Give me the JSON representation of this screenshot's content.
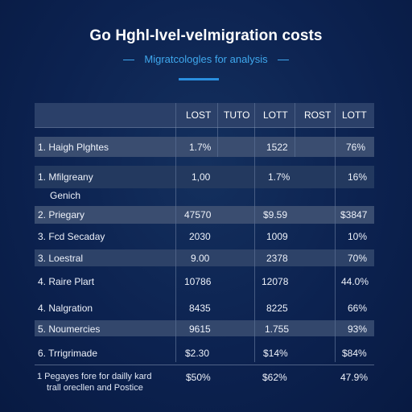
{
  "title": "Go Hghl-lvel-velmigration costs",
  "subtitle": "Migratcologles for analysis",
  "table": {
    "headers": [
      "LOST",
      "TUTO",
      "LOTT",
      "ROST",
      "LOTT"
    ],
    "rows": [
      {
        "label": "1. Haigh Plghtes",
        "sub": "",
        "values": [
          "1.7%",
          "",
          "1522",
          "",
          "76%"
        ]
      },
      {
        "label": "1. Mfilgreany",
        "sub": "Genich",
        "values": [
          "1,00",
          "",
          "1.7%",
          "",
          "16%"
        ]
      },
      {
        "label": "2. Priegary",
        "sub": "",
        "values": [
          "47570",
          "",
          "$9.59",
          "",
          "$3847"
        ]
      },
      {
        "label": "3. Fcd Secaday",
        "sub": "",
        "values": [
          "2030",
          "",
          "1009",
          "",
          "10%"
        ]
      },
      {
        "label": "3. Loestral",
        "sub": "",
        "values": [
          "9.00",
          "",
          "2378",
          "",
          "70%"
        ]
      },
      {
        "label": "4. Raire Plart",
        "sub": "",
        "values": [
          "10786",
          "",
          "12078",
          "",
          "44.0%"
        ]
      },
      {
        "label": "4. Nalgration",
        "sub": "",
        "values": [
          "8435",
          "",
          "8225",
          "",
          "66%"
        ]
      },
      {
        "label": "5. Noumercies",
        "sub": "",
        "values": [
          "9615",
          "",
          "1.755",
          "",
          "93%"
        ]
      },
      {
        "label": "6. Trrigrimade",
        "sub": "",
        "values": [
          "$2.30",
          "",
          "$14%",
          "",
          "$84%"
        ]
      }
    ]
  },
  "footnote": {
    "line1": "1 Pegayes fore for dailly kard",
    "line2": "trall orecllen and Postice",
    "values": [
      "$50%",
      "$62%",
      "47.9%"
    ]
  },
  "colors": {
    "background": "#0c2250",
    "accent": "#2a8fe0",
    "subtitle": "#3fa8ee",
    "band_light": "#3a4d70",
    "band_dark": "#23395f"
  }
}
